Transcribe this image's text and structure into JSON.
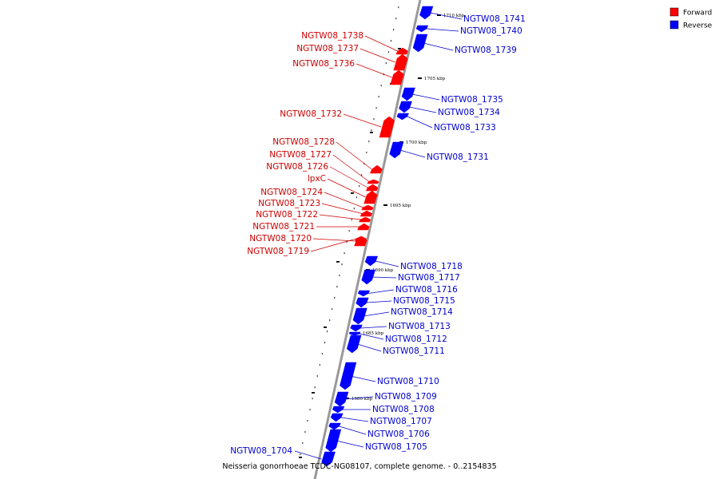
{
  "legend": [
    {
      "label": "Forward",
      "color": "#ff0000"
    },
    {
      "label": "Reverse",
      "color": "#0000ff"
    }
  ],
  "caption": "Neisseria gonorrhoeae TCDC-NG08107, complete genome. - 0..2154835",
  "colors": {
    "forward": "#ff0000",
    "reverse": "#0000ff",
    "backbone": "#999999",
    "label_forward": "#cc0000",
    "label_reverse": "#0000cc"
  },
  "ticks": [
    "1710 kbp",
    "1705 kbp",
    "1700 kbp",
    "1695 kbp",
    "1690 kbp",
    "1685 kbp",
    "1680 kbp"
  ],
  "genes_forward": [
    "NGTW08_1738",
    "NGTW08_1737",
    "NGTW08_1736",
    "NGTW08_1732",
    "NGTW08_1728",
    "NGTW08_1727",
    "NGTW08_1726",
    "lpxC",
    "NGTW08_1724",
    "NGTW08_1723",
    "NGTW08_1722",
    "NGTW08_1721",
    "NGTW08_1720",
    "NGTW08_1719"
  ],
  "genes_reverse": [
    "NGTW08_1741",
    "NGTW08_1740",
    "NGTW08_1739",
    "NGTW08_1735",
    "NGTW08_1734",
    "NGTW08_1733",
    "NGTW08_1731",
    "NGTW08_1718",
    "NGTW08_1717",
    "NGTW08_1716",
    "NGTW08_1715",
    "NGTW08_1714",
    "NGTW08_1713",
    "NGTW08_1712",
    "NGTW08_1711",
    "NGTW08_1710",
    "NGTW08_1709",
    "NGTW08_1708",
    "NGTW08_1707",
    "NGTW08_1706",
    "NGTW08_1705",
    "NGTW08_1704"
  ]
}
